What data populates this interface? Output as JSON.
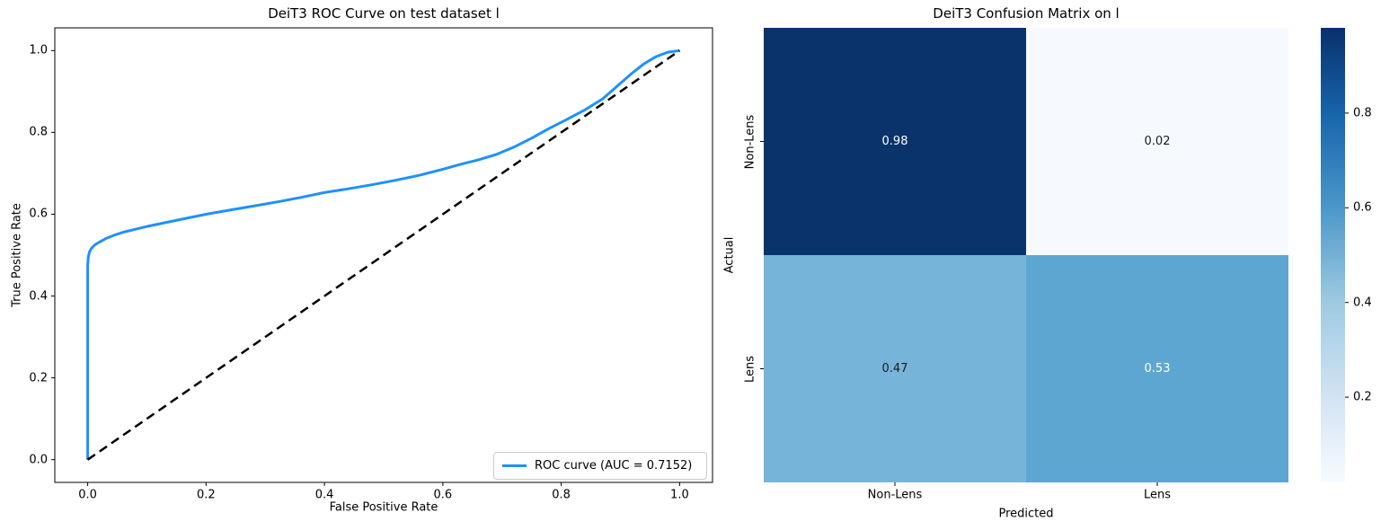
{
  "figure": {
    "background": "#ffffff"
  },
  "roc_plot": {
    "title": "DeiT3 ROC Curve on test dataset l",
    "xlabel": "False Positive Rate",
    "ylabel": "True Positive Rate",
    "legend_label": "ROC curve (AUC = 0.7152)",
    "auc": "0.7152",
    "line_color": "#1e90ff",
    "diagonal_color": "#000000"
  },
  "cm_plot": {
    "title": "DeiT3 Confusion Matrix on l",
    "xlabel": "Predicted",
    "ylabel": "Actual",
    "classes": [
      "Non-Lens",
      "Lens"
    ]
  },
  "chart_data": [
    {
      "type": "line",
      "title": "DeiT3 ROC Curve on test dataset l",
      "xlabel": "False Positive Rate",
      "ylabel": "True Positive Rate",
      "xlim": [
        0.0,
        1.0
      ],
      "ylim": [
        0.0,
        1.0
      ],
      "x_ticks": [
        0.0,
        0.2,
        0.4,
        0.6,
        0.8,
        1.0
      ],
      "y_ticks": [
        0.0,
        0.2,
        0.4,
        0.6,
        0.8,
        1.0
      ],
      "grid": false,
      "legend_position": "lower right",
      "series": [
        {
          "name": "ROC curve (AUC = 0.7152)",
          "color": "#1e90ff",
          "style": "solid",
          "width": 3,
          "x": [
            0.0,
            0.0,
            0.001,
            0.003,
            0.006,
            0.012,
            0.02,
            0.03,
            0.045,
            0.06,
            0.08,
            0.1,
            0.13,
            0.16,
            0.2,
            0.24,
            0.28,
            0.32,
            0.36,
            0.4,
            0.44,
            0.48,
            0.52,
            0.56,
            0.6,
            0.63,
            0.66,
            0.69,
            0.72,
            0.75,
            0.78,
            0.81,
            0.84,
            0.87,
            0.9,
            0.92,
            0.94,
            0.96,
            0.98,
            1.0
          ],
          "y": [
            0.0,
            0.475,
            0.495,
            0.508,
            0.516,
            0.525,
            0.532,
            0.54,
            0.549,
            0.556,
            0.563,
            0.57,
            0.579,
            0.588,
            0.6,
            0.61,
            0.62,
            0.63,
            0.641,
            0.653,
            0.662,
            0.672,
            0.683,
            0.695,
            0.71,
            0.722,
            0.733,
            0.746,
            0.764,
            0.786,
            0.81,
            0.832,
            0.855,
            0.882,
            0.92,
            0.945,
            0.968,
            0.985,
            0.996,
            1.0
          ]
        },
        {
          "name": "chance-diagonal",
          "color": "#000000",
          "style": "dashed",
          "width": 2.5,
          "x": [
            0.0,
            1.0
          ],
          "y": [
            0.0,
            1.0
          ]
        }
      ]
    },
    {
      "type": "heatmap",
      "title": "DeiT3 Confusion Matrix on l",
      "xlabel": "Predicted",
      "ylabel": "Actual",
      "x_categories": [
        "Non-Lens",
        "Lens"
      ],
      "y_categories": [
        "Non-Lens",
        "Lens"
      ],
      "values": [
        [
          0.98,
          0.02
        ],
        [
          0.47,
          0.53
        ]
      ],
      "cell_colors": [
        [
          "#0b336b",
          "#f6fafe"
        ],
        [
          "#77b4da",
          "#5ea6d2"
        ]
      ],
      "text_colors": [
        [
          "#ffffff",
          "#1a1a1a"
        ],
        [
          "#1a1a1a",
          "#ffffff"
        ]
      ],
      "colormap": "Blues",
      "colorbar_range": [
        0.02,
        0.98
      ],
      "colorbar_ticks": [
        0.2,
        0.4,
        0.6,
        0.8
      ],
      "colorbar_gradient": [
        {
          "value": 0.02,
          "color": "#f7fbff"
        },
        {
          "value": 0.2,
          "color": "#d2e3f3"
        },
        {
          "value": 0.4,
          "color": "#9ecae1"
        },
        {
          "value": 0.6,
          "color": "#4b97ca"
        },
        {
          "value": 0.8,
          "color": "#1764ab"
        },
        {
          "value": 0.98,
          "color": "#08306b"
        }
      ]
    }
  ]
}
